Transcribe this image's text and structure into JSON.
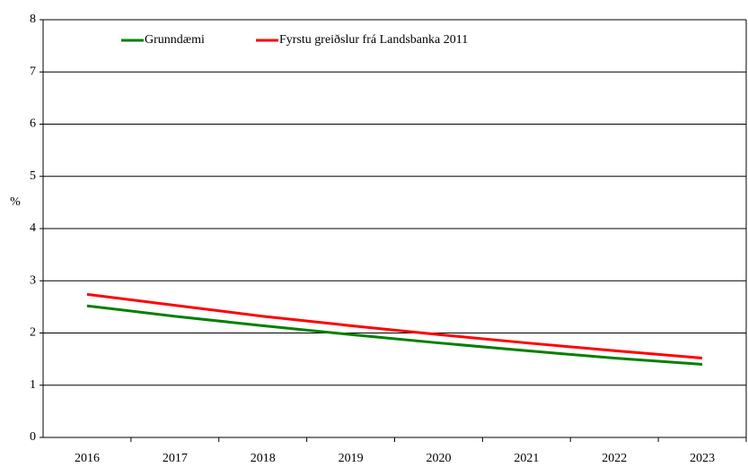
{
  "chart_data": {
    "type": "line",
    "y_label": "%",
    "categories": [
      "2016",
      "2017",
      "2018",
      "2019",
      "2020",
      "2021",
      "2022",
      "2023"
    ],
    "series": [
      {
        "name": "Grunndæmi",
        "color": "#008000",
        "values": [
          2.52,
          2.32,
          2.14,
          1.97,
          1.81,
          1.66,
          1.52,
          1.4
        ]
      },
      {
        "name": "Fyrstu greiðslur frá Landsbanka 2011",
        "color": "#ff0000",
        "values": [
          2.74,
          2.53,
          2.32,
          2.14,
          1.97,
          1.81,
          1.66,
          1.52
        ]
      }
    ],
    "ylim": [
      0,
      8
    ],
    "yticks": [
      0,
      1,
      2,
      3,
      4,
      5,
      6,
      7,
      8
    ],
    "grid": true
  }
}
